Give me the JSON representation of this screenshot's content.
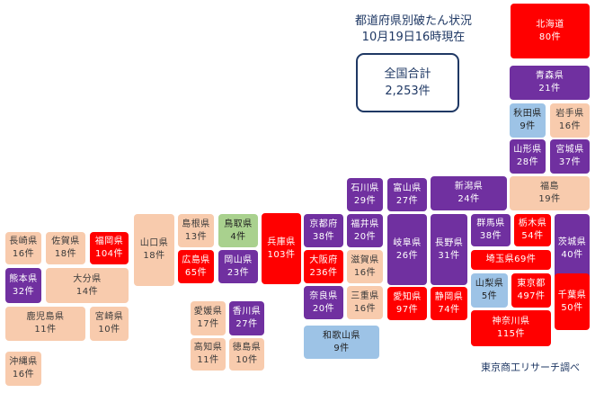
{
  "title": {
    "line1": "都道府県別破たん状況",
    "line2": "10月19日16時現在"
  },
  "total": {
    "label": "全国合計",
    "value": "2,253件"
  },
  "source": "東京商工リサーチ調べ",
  "legend_colors": {
    "red": "#ff0000",
    "purple": "#7030a0",
    "peach": "#f8cbad",
    "blue": "#9dc3e6",
    "green": "#a9d18e"
  },
  "prefectures": [
    {
      "id": "hokkaido",
      "name": "北海道",
      "count": "80件",
      "color": "red"
    },
    {
      "id": "aomori",
      "name": "青森県",
      "count": "21件",
      "color": "purple"
    },
    {
      "id": "akita",
      "name": "秋田県",
      "count": "9件",
      "color": "blue"
    },
    {
      "id": "iwate",
      "name": "岩手県",
      "count": "16件",
      "color": "peach"
    },
    {
      "id": "yamagata",
      "name": "山形県",
      "count": "28件",
      "color": "purple"
    },
    {
      "id": "miyagi",
      "name": "宮城県",
      "count": "37件",
      "color": "purple"
    },
    {
      "id": "fukushima",
      "name": "福島",
      "count": "19件",
      "color": "peach"
    },
    {
      "id": "niigata",
      "name": "新潟県",
      "count": "24件",
      "color": "purple"
    },
    {
      "id": "ishikawa",
      "name": "石川県",
      "count": "29件",
      "color": "purple"
    },
    {
      "id": "toyama",
      "name": "富山県",
      "count": "27件",
      "color": "purple"
    },
    {
      "id": "fukui",
      "name": "福井県",
      "count": "20件",
      "color": "purple"
    },
    {
      "id": "kyoto",
      "name": "京都府",
      "count": "38件",
      "color": "purple"
    },
    {
      "id": "hyogo",
      "name": "兵庫県",
      "count": "103件",
      "color": "red"
    },
    {
      "id": "osaka",
      "name": "大阪府",
      "count": "236件",
      "color": "red"
    },
    {
      "id": "shiga",
      "name": "滋賀県",
      "count": "16件",
      "color": "peach"
    },
    {
      "id": "gifu",
      "name": "岐阜県",
      "count": "26件",
      "color": "purple"
    },
    {
      "id": "nagano",
      "name": "長野県",
      "count": "31件",
      "color": "purple"
    },
    {
      "id": "gunma",
      "name": "群馬県",
      "count": "38件",
      "color": "purple"
    },
    {
      "id": "tochigi",
      "name": "栃木県",
      "count": "54件",
      "color": "red"
    },
    {
      "id": "ibaraki",
      "name": "茨城県",
      "count": "40件",
      "color": "purple"
    },
    {
      "id": "saitama",
      "name": "埼玉県",
      "count": "69件",
      "color": "red"
    },
    {
      "id": "yamanashi",
      "name": "山梨県",
      "count": "5件",
      "color": "blue"
    },
    {
      "id": "tokyo",
      "name": "東京都",
      "count": "497件",
      "color": "red"
    },
    {
      "id": "chiba",
      "name": "千葉県",
      "count": "50件",
      "color": "red"
    },
    {
      "id": "kanagawa",
      "name": "神奈川県",
      "count": "115件",
      "color": "red"
    },
    {
      "id": "nara",
      "name": "奈良県",
      "count": "20件",
      "color": "purple"
    },
    {
      "id": "mie",
      "name": "三重県",
      "count": "16件",
      "color": "peach"
    },
    {
      "id": "aichi",
      "name": "愛知県",
      "count": "97件",
      "color": "red"
    },
    {
      "id": "shizuoka",
      "name": "静岡県",
      "count": "74件",
      "color": "red"
    },
    {
      "id": "wakayama",
      "name": "和歌山県",
      "count": "9件",
      "color": "blue"
    },
    {
      "id": "shimane",
      "name": "島根県",
      "count": "13件",
      "color": "peach"
    },
    {
      "id": "tottori",
      "name": "鳥取県",
      "count": "4件",
      "color": "green"
    },
    {
      "id": "yamaguchi",
      "name": "山口県",
      "count": "18件",
      "color": "peach"
    },
    {
      "id": "hiroshima",
      "name": "広島県",
      "count": "65件",
      "color": "red"
    },
    {
      "id": "okayama",
      "name": "岡山県",
      "count": "23件",
      "color": "purple"
    },
    {
      "id": "ehime",
      "name": "愛媛県",
      "count": "17件",
      "color": "peach"
    },
    {
      "id": "kagawa",
      "name": "香川県",
      "count": "27件",
      "color": "purple"
    },
    {
      "id": "kochi",
      "name": "高知県",
      "count": "11件",
      "color": "peach"
    },
    {
      "id": "tokushima",
      "name": "徳島県",
      "count": "10件",
      "color": "peach"
    },
    {
      "id": "nagasaki",
      "name": "長崎県",
      "count": "16件",
      "color": "peach"
    },
    {
      "id": "saga",
      "name": "佐賀県",
      "count": "18件",
      "color": "peach"
    },
    {
      "id": "fukuoka",
      "name": "福岡県",
      "count": "104件",
      "color": "red"
    },
    {
      "id": "kumamoto",
      "name": "熊本県",
      "count": "32件",
      "color": "purple"
    },
    {
      "id": "oita",
      "name": "大分県",
      "count": "14件",
      "color": "peach"
    },
    {
      "id": "kagoshima",
      "name": "鹿児島県",
      "count": "11件",
      "color": "peach"
    },
    {
      "id": "miyazaki",
      "name": "宮崎県",
      "count": "10件",
      "color": "peach"
    },
    {
      "id": "okinawa",
      "name": "沖縄県",
      "count": "16件",
      "color": "peach"
    }
  ]
}
